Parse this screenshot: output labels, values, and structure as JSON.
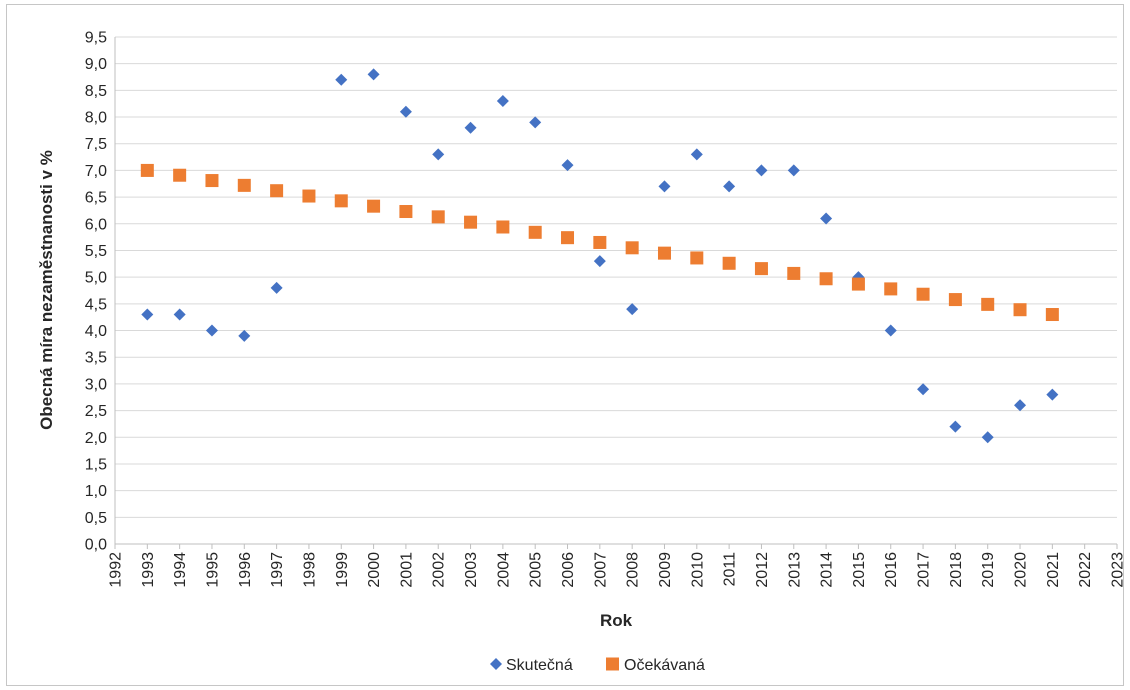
{
  "chart_data": {
    "type": "scatter",
    "title": "",
    "xlabel": "Rok",
    "ylabel": "Obecná míra nezaměstnanosti v %",
    "xlim": [
      1992,
      2023
    ],
    "ylim": [
      0,
      9.5
    ],
    "x_ticks": [
      "1992",
      "1993",
      "1994",
      "1995",
      "1996",
      "1997",
      "1998",
      "1999",
      "2000",
      "2001",
      "2002",
      "2003",
      "2004",
      "2005",
      "2006",
      "2007",
      "2008",
      "2009",
      "2010",
      "2011",
      "2012",
      "2013",
      "2014",
      "2015",
      "2016",
      "2017",
      "2018",
      "2019",
      "2020",
      "2021",
      "2022",
      "2023"
    ],
    "y_ticks": [
      "0,0",
      "0,5",
      "1,0",
      "1,5",
      "2,0",
      "2,5",
      "3,0",
      "3,5",
      "4,0",
      "4,5",
      "5,0",
      "5,5",
      "6,0",
      "6,5",
      "7,0",
      "7,5",
      "8,0",
      "8,5",
      "9,0",
      "9,5"
    ],
    "grid": true,
    "legend_position": "bottom",
    "series": [
      {
        "name": "Skutečná",
        "marker": "diamond",
        "color": "#4472C4",
        "x": [
          1993,
          1994,
          1995,
          1996,
          1997,
          1999,
          2000,
          2001,
          2002,
          2003,
          2004,
          2005,
          2006,
          2007,
          2008,
          2009,
          2010,
          2011,
          2012,
          2013,
          2014,
          2015,
          2016,
          2017,
          2018,
          2019,
          2020,
          2021
        ],
        "values": [
          4.3,
          4.3,
          4.0,
          3.9,
          4.8,
          8.7,
          8.8,
          8.1,
          7.3,
          7.8,
          8.3,
          7.9,
          7.1,
          5.3,
          4.4,
          6.7,
          7.3,
          6.7,
          7.0,
          7.0,
          6.1,
          5.0,
          4.0,
          2.9,
          2.2,
          2.0,
          2.6,
          2.8
        ]
      },
      {
        "name": "Očekávaná",
        "marker": "square",
        "color": "#ED7D31",
        "x": [
          1993,
          1994,
          1995,
          1996,
          1997,
          1998,
          1999,
          2000,
          2001,
          2002,
          2003,
          2004,
          2005,
          2006,
          2007,
          2008,
          2009,
          2010,
          2011,
          2012,
          2013,
          2014,
          2015,
          2016,
          2017,
          2018,
          2019,
          2020,
          2021
        ],
        "values": [
          7.0,
          6.91,
          6.81,
          6.72,
          6.62,
          6.52,
          6.43,
          6.33,
          6.23,
          6.13,
          6.03,
          5.94,
          5.84,
          5.74,
          5.65,
          5.55,
          5.45,
          5.36,
          5.26,
          5.16,
          5.07,
          4.97,
          4.87,
          4.78,
          4.68,
          4.58,
          4.49,
          4.39,
          4.3
        ]
      }
    ]
  }
}
